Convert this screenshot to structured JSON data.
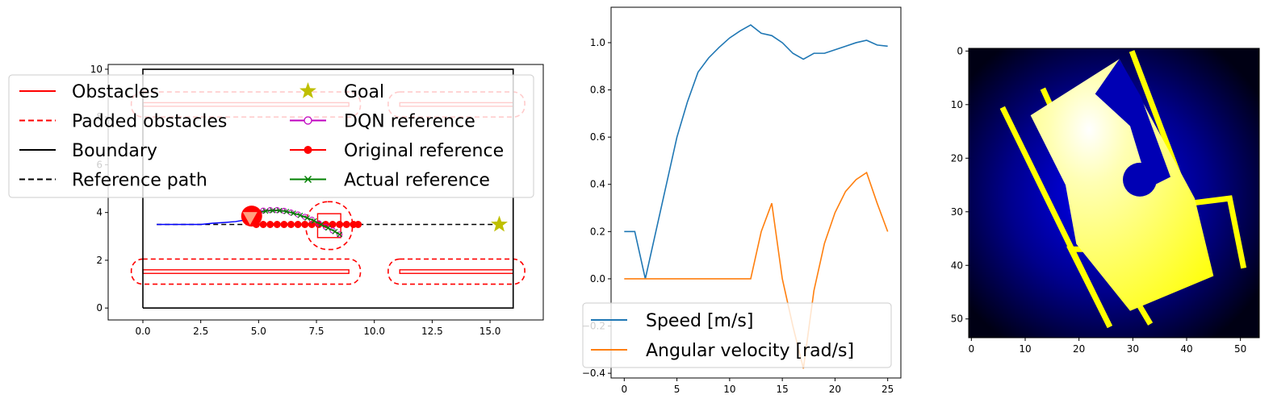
{
  "chart_data": [
    {
      "type": "line",
      "title": "",
      "xlim": [
        -1.5,
        17.3
      ],
      "ylim": [
        -0.5,
        10.2
      ],
      "xticks": [
        "0.0",
        "2.5",
        "5.0",
        "7.5",
        "10.0",
        "12.5",
        "15.0"
      ],
      "yticks": [
        "0",
        "2",
        "4",
        "6",
        "8",
        "10"
      ],
      "legend": {
        "placement": "upper",
        "entries": [
          "Obstacles",
          "Goal",
          "Padded obstacles",
          "DQN reference",
          "Boundary",
          "Original reference",
          "Reference path",
          "Actual reference"
        ]
      },
      "boundary": [
        [
          0,
          0
        ],
        [
          16,
          0
        ],
        [
          16,
          10
        ],
        [
          0,
          10
        ],
        [
          0,
          0
        ]
      ],
      "obstacles": [
        {
          "x0": 0,
          "x1": 8.9,
          "y0": 1.45,
          "y1": 1.6
        },
        {
          "x0": 11.1,
          "x1": 16,
          "y0": 1.45,
          "y1": 1.6
        },
        {
          "x0": 0,
          "x1": 8.9,
          "y0": 8.45,
          "y1": 8.6
        },
        {
          "x0": 11.1,
          "x1": 16,
          "y0": 8.45,
          "y1": 8.6
        },
        {
          "x0": 7.55,
          "x1": 8.55,
          "y0": 2.95,
          "y1": 3.95
        }
      ],
      "padded_obstacles": [
        {
          "x0": -0.5,
          "x1": 9.4,
          "y0": 1.0,
          "y1": 2.05
        },
        {
          "x0": 10.6,
          "x1": 16.5,
          "y0": 1.0,
          "y1": 2.05
        },
        {
          "x0": -0.5,
          "x1": 9.4,
          "y0": 8.0,
          "y1": 9.05
        },
        {
          "x0": 10.6,
          "x1": 16.5,
          "y0": 8.0,
          "y1": 9.05
        },
        {
          "x0": 7.05,
          "x1": 9.05,
          "y0": 2.45,
          "y1": 4.45
        }
      ],
      "reference_path": {
        "x": [
          0.6,
          15.4
        ],
        "y": [
          3.5,
          3.5
        ]
      },
      "goal": {
        "x": 15.4,
        "y": 3.5
      },
      "robot_trajectory": {
        "x": [
          0.6,
          1.5,
          2.5,
          3.0,
          3.5,
          4.0,
          4.5,
          4.8
        ],
        "y": [
          3.5,
          3.5,
          3.5,
          3.55,
          3.58,
          3.62,
          3.7,
          3.8
        ]
      },
      "robot": {
        "x": 4.7,
        "y": 3.85
      },
      "dqn_reference": {
        "x": [
          4.9,
          5.2,
          5.5,
          5.8,
          6.1,
          6.4,
          6.7,
          7.0,
          7.3,
          7.6,
          7.9,
          8.2,
          8.5
        ],
        "y": [
          4.0,
          4.08,
          4.1,
          4.1,
          4.07,
          4.0,
          3.92,
          3.82,
          3.7,
          3.55,
          3.4,
          3.25,
          3.08
        ]
      },
      "original_reference": {
        "x": [
          4.9,
          5.2,
          5.5,
          5.8,
          6.1,
          6.4,
          6.7,
          7.0,
          7.3,
          7.6,
          7.9,
          8.2,
          8.5,
          8.8,
          9.1,
          9.3
        ],
        "y": [
          3.5,
          3.5,
          3.5,
          3.5,
          3.5,
          3.5,
          3.5,
          3.5,
          3.5,
          3.5,
          3.5,
          3.5,
          3.5,
          3.5,
          3.5,
          3.5
        ]
      },
      "actual_reference": {
        "x": [
          5.0,
          5.3,
          5.6,
          5.9,
          6.2,
          6.5,
          6.8,
          7.1,
          7.4,
          7.7,
          8.0,
          8.3,
          8.5
        ],
        "y": [
          4.0,
          4.06,
          4.08,
          4.08,
          4.04,
          3.97,
          3.88,
          3.77,
          3.65,
          3.5,
          3.35,
          3.2,
          3.08
        ]
      }
    },
    {
      "type": "line",
      "title": "",
      "xlim": [
        -1.25,
        26.25
      ],
      "ylim": [
        -0.42,
        1.15
      ],
      "xticks": [
        "0",
        "5",
        "10",
        "15",
        "20",
        "25"
      ],
      "yticks": [
        "−0.4",
        "−0.2",
        "0.0",
        "0.2",
        "0.4",
        "0.6",
        "0.8",
        "1.0"
      ],
      "legend": {
        "placement": "lower-left"
      },
      "x": [
        0,
        1,
        2,
        3,
        4,
        5,
        6,
        7,
        8,
        9,
        10,
        11,
        12,
        13,
        14,
        15,
        16,
        17,
        18,
        19,
        20,
        21,
        22,
        23,
        24,
        25
      ],
      "series": [
        {
          "name": "Speed [m/s]",
          "color": "#1f77b4",
          "values": [
            0.2,
            0.2,
            0.0,
            0.2,
            0.4,
            0.6,
            0.75,
            0.875,
            0.935,
            0.98,
            1.02,
            1.05,
            1.075,
            1.04,
            1.03,
            1.0,
            0.955,
            0.93,
            0.955,
            0.955,
            0.97,
            0.985,
            1.0,
            1.01,
            0.99,
            0.985
          ]
        },
        {
          "name": "Angular velocity [rad/s]",
          "color": "#ff7f0e",
          "values": [
            0.0,
            0.0,
            0.0,
            0.0,
            0.0,
            0.0,
            0.0,
            0.0,
            0.0,
            0.0,
            0.0,
            0.0,
            0.0,
            0.2,
            0.32,
            0.0,
            -0.2,
            -0.38,
            -0.05,
            0.15,
            0.28,
            0.37,
            0.42,
            0.45,
            0.32,
            0.2
          ]
        }
      ]
    },
    {
      "type": "heatmap",
      "title": "",
      "xlim": [
        -0.5,
        53.5
      ],
      "ylim": [
        53.5,
        -0.5
      ],
      "xticks": [
        "0",
        "10",
        "20",
        "30",
        "40",
        "50"
      ],
      "yticks": [
        "0",
        "10",
        "20",
        "30",
        "40",
        "50"
      ],
      "colors": {
        "background": "#000010",
        "halo": "#0000ff",
        "free_space": "#ffff3c",
        "walls": "#ffff00",
        "obstacle": "#0000b4"
      }
    }
  ]
}
